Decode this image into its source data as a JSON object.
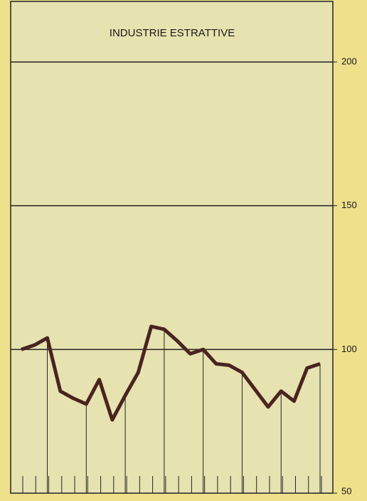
{
  "chart_data": {
    "type": "line",
    "title": "INDUSTRIE ESTRATTIVE",
    "values": [
      100,
      101.5,
      104,
      85.5,
      83,
      81,
      89.5,
      75.5,
      84,
      92,
      108,
      107,
      103,
      98.5,
      100,
      95,
      94.5,
      92,
      86,
      80,
      85.5,
      82,
      93.5,
      95
    ],
    "color": "#4a2420",
    "ylim": [
      50,
      200
    ],
    "yticks": [
      50,
      100,
      150,
      200
    ],
    "grid": true
  }
}
